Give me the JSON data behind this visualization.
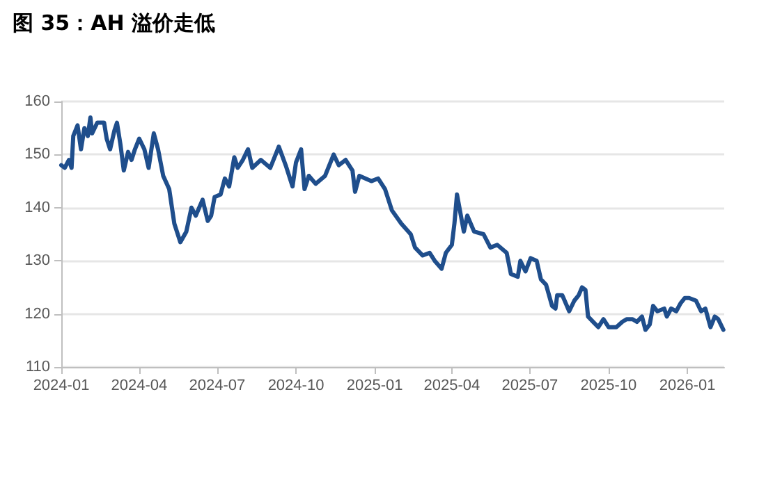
{
  "chart_data": {
    "type": "line",
    "title": "图 35：AH 溢价走低",
    "x": [
      "2024-01-01",
      "2024-01-05",
      "2024-01-10",
      "2024-01-13",
      "2024-01-15",
      "2024-01-20",
      "2024-01-24",
      "2024-01-28",
      "2024-02-01",
      "2024-02-04",
      "2024-02-06",
      "2024-02-12",
      "2024-02-20",
      "2024-02-23",
      "2024-02-27",
      "2024-03-03",
      "2024-03-06",
      "2024-03-10",
      "2024-03-14",
      "2024-03-19",
      "2024-03-23",
      "2024-03-27",
      "2024-04-01",
      "2024-04-07",
      "2024-04-12",
      "2024-04-18",
      "2024-04-23",
      "2024-04-29",
      "2024-05-06",
      "2024-05-12",
      "2024-05-19",
      "2024-05-26",
      "2024-06-01",
      "2024-06-06",
      "2024-06-14",
      "2024-06-20",
      "2024-06-24",
      "2024-06-28",
      "2024-07-05",
      "2024-07-10",
      "2024-07-15",
      "2024-07-21",
      "2024-07-25",
      "2024-07-31",
      "2024-08-06",
      "2024-08-11",
      "2024-08-21",
      "2024-09-01",
      "2024-09-11",
      "2024-09-19",
      "2024-09-27",
      "2024-10-01",
      "2024-10-07",
      "2024-10-11",
      "2024-10-16",
      "2024-10-24",
      "2024-11-04",
      "2024-11-14",
      "2024-11-20",
      "2024-11-28",
      "2024-12-06",
      "2024-12-09",
      "2024-12-14",
      "2024-12-28",
      "2025-01-05",
      "2025-01-13",
      "2025-01-21",
      "2025-02-01",
      "2025-02-12",
      "2025-02-17",
      "2025-02-26",
      "2025-03-06",
      "2025-03-12",
      "2025-03-20",
      "2025-03-25",
      "2025-04-01",
      "2025-04-04",
      "2025-04-07",
      "2025-04-11",
      "2025-04-15",
      "2025-04-19",
      "2025-04-27",
      "2025-05-08",
      "2025-05-16",
      "2025-05-24",
      "2025-06-04",
      "2025-06-09",
      "2025-06-17",
      "2025-06-20",
      "2025-06-26",
      "2025-07-02",
      "2025-07-09",
      "2025-07-14",
      "2025-07-20",
      "2025-07-27",
      "2025-07-31",
      "2025-08-02",
      "2025-08-08",
      "2025-08-16",
      "2025-08-22",
      "2025-08-27",
      "2025-08-31",
      "2025-09-04",
      "2025-09-07",
      "2025-09-13",
      "2025-09-19",
      "2025-09-25",
      "2025-10-01",
      "2025-10-10",
      "2025-10-17",
      "2025-10-22",
      "2025-10-29",
      "2025-11-03",
      "2025-11-09",
      "2025-11-13",
      "2025-11-18",
      "2025-11-22",
      "2025-11-27",
      "2025-12-05",
      "2025-12-08",
      "2025-12-13",
      "2025-12-19",
      "2025-12-24",
      "2025-12-29",
      "2026-01-03",
      "2026-01-11",
      "2026-01-17",
      "2026-01-22",
      "2026-01-28",
      "2026-02-02",
      "2026-02-06",
      "2026-02-12"
    ],
    "series": [
      {
        "color": "#1f4e8c",
        "values": [
          148,
          147.5,
          149,
          147.5,
          153.5,
          155.5,
          151,
          155,
          153.5,
          157,
          154,
          156,
          156,
          153,
          151,
          154.5,
          156,
          152,
          147,
          150.5,
          149,
          151,
          153,
          151,
          147.5,
          154,
          151,
          146,
          143.5,
          137,
          133.5,
          135.5,
          140,
          138.5,
          141.5,
          137.5,
          138.5,
          142,
          142.5,
          145.5,
          144,
          149.5,
          147.5,
          149,
          151,
          147.5,
          149,
          147.5,
          151.5,
          148,
          144,
          148.5,
          151,
          143.5,
          146,
          144.5,
          146,
          150,
          148,
          149,
          147,
          143,
          146,
          145,
          145.5,
          143.5,
          139.5,
          137,
          135,
          132.5,
          131,
          131.5,
          130,
          128.5,
          131.5,
          133,
          137,
          142.5,
          139,
          135.5,
          138.5,
          135.5,
          135,
          132.5,
          133,
          131.5,
          127.5,
          127,
          130,
          128,
          130.5,
          130,
          126.5,
          125.5,
          121.5,
          121,
          123.5,
          123.5,
          120.5,
          122.5,
          123.5,
          125,
          124.5,
          119.5,
          118.5,
          117.5,
          119,
          117.5,
          117.5,
          118.5,
          119,
          119,
          118.5,
          119.5,
          117,
          118,
          121.5,
          120.5,
          121,
          119.5,
          121,
          120.5,
          122,
          123,
          123,
          122.5,
          120.5,
          121,
          117.5,
          119.5,
          119,
          117
        ]
      }
    ],
    "xlim": [
      "2024-01-01",
      "2026-02-13"
    ],
    "xticks": [
      {
        "value": "2024-01-01",
        "label": "2024-01"
      },
      {
        "value": "2024-04-01",
        "label": "2024-04"
      },
      {
        "value": "2024-07-01",
        "label": "2024-07"
      },
      {
        "value": "2024-10-01",
        "label": "2024-10"
      },
      {
        "value": "2025-01-01",
        "label": "2025-01"
      },
      {
        "value": "2025-04-01",
        "label": "2025-04"
      },
      {
        "value": "2025-07-01",
        "label": "2025-07"
      },
      {
        "value": "2025-10-01",
        "label": "2025-10"
      },
      {
        "value": "2026-01-01",
        "label": "2026-01"
      }
    ],
    "ylim": [
      110,
      160
    ],
    "yticks": [
      110,
      120,
      130,
      140,
      150,
      160
    ],
    "grid": "y",
    "marker": "none",
    "line_style": "solid"
  }
}
